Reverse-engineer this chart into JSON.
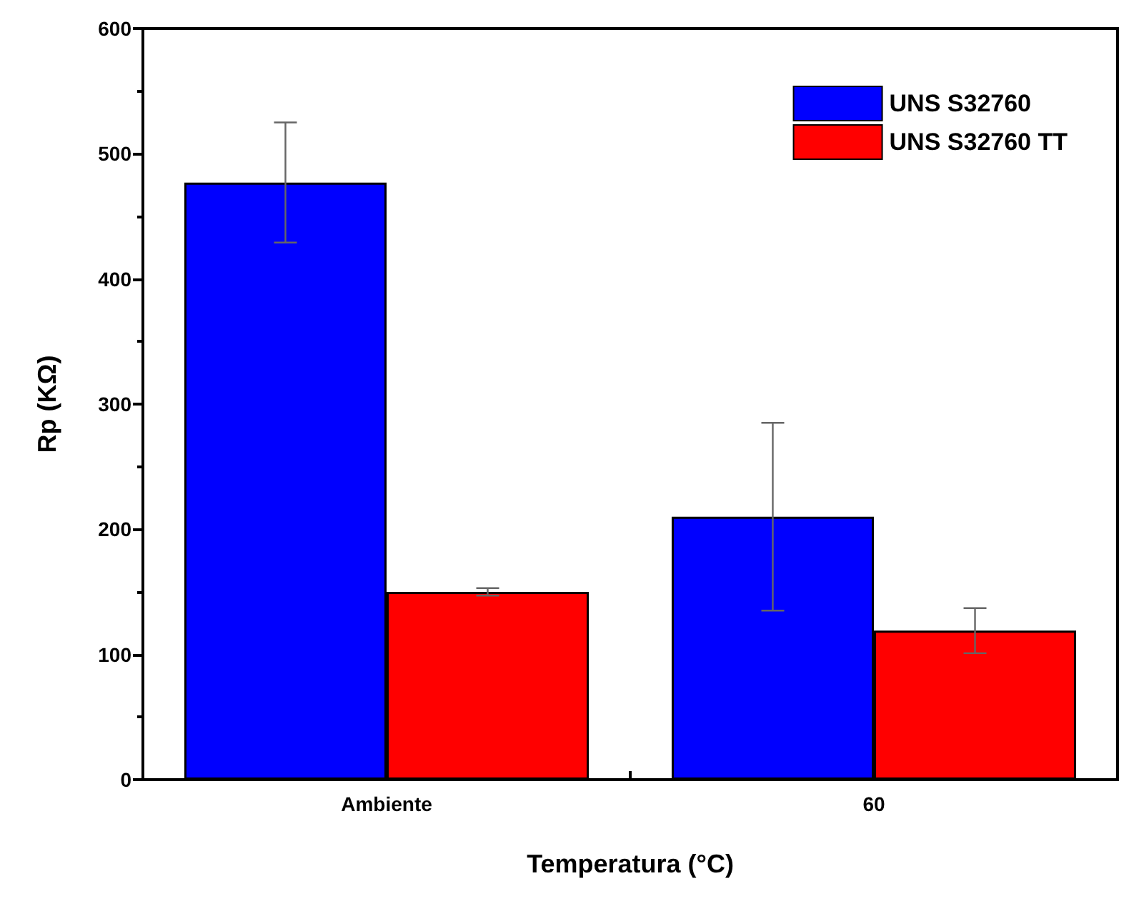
{
  "chart_data": {
    "type": "bar",
    "xlabel": "Temperatura (°C)",
    "ylabel": "Rp (KΩ)",
    "categories": [
      "Ambiente",
      "60"
    ],
    "series": [
      {
        "name": "UNS S32760",
        "color": "#0000ff",
        "values": [
          477,
          210
        ],
        "errors": [
          48,
          75
        ]
      },
      {
        "name": "UNS S32760 TT",
        "color": "#ff0000",
        "values": [
          150,
          119
        ],
        "errors": [
          3,
          18
        ]
      }
    ],
    "ylim": [
      0,
      600
    ],
    "yticks": [
      0,
      100,
      200,
      300,
      400,
      500,
      600
    ],
    "grid": false,
    "legend": "top right"
  }
}
